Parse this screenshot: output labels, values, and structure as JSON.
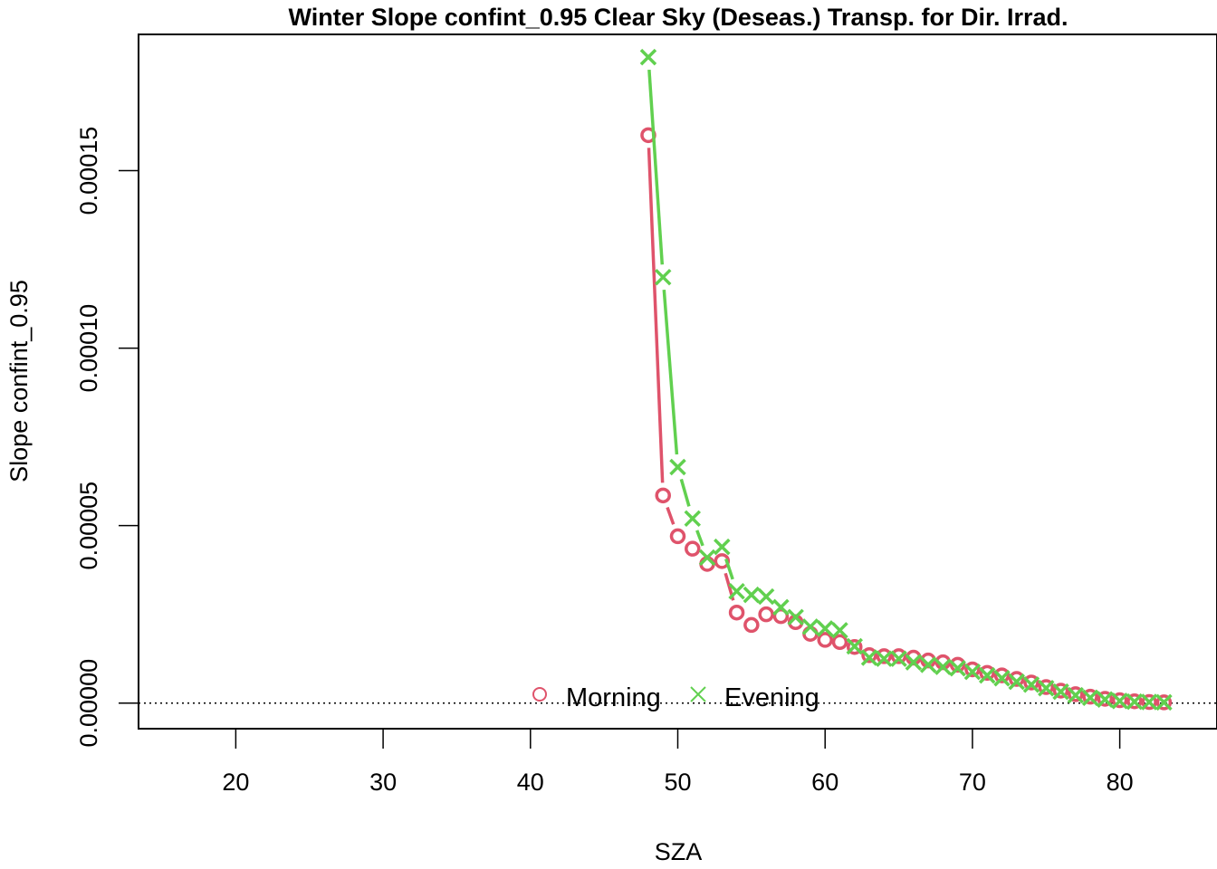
{
  "chart_data": {
    "type": "line",
    "title": "Winter Slope confint_0.95 Clear Sky (Deseas.) Transp. for Dir. Irrad.",
    "xlabel": "SZA",
    "ylabel": "Slope confint_0.95",
    "xlim": [
      13.4,
      86.6
    ],
    "ylim": [
      -7.22e-06,
      0.0001884
    ],
    "xticks": [
      20,
      30,
      40,
      50,
      60,
      70,
      80
    ],
    "xtick_labels": [
      "20",
      "30",
      "40",
      "50",
      "60",
      "70",
      "80"
    ],
    "yticks": [
      0,
      5e-05,
      0.0001,
      0.00015
    ],
    "ytick_labels": [
      "0.00000",
      "0.00005",
      "0.00010",
      "0.00015"
    ],
    "reference_line": {
      "y": 0,
      "style": "dotted"
    },
    "grid": false,
    "legend_position": "bottom-center",
    "series": [
      {
        "name": "Morning",
        "color": "#DF536B",
        "marker": "circle",
        "x": [
          48,
          49,
          50,
          51,
          52,
          53,
          54,
          55,
          56,
          57,
          58,
          59,
          60,
          61,
          62,
          63,
          64,
          65,
          66,
          67,
          68,
          69,
          70,
          71,
          72,
          73,
          74,
          75,
          76,
          77,
          78,
          79,
          80,
          81,
          82,
          83
        ],
        "y": [
          0.00016,
          5.85e-05,
          4.7e-05,
          4.35e-05,
          3.92e-05,
          4e-05,
          2.55e-05,
          2.2e-05,
          2.5e-05,
          2.45e-05,
          2.28e-05,
          1.95e-05,
          1.78e-05,
          1.72e-05,
          1.58e-05,
          1.35e-05,
          1.32e-05,
          1.32e-05,
          1.28e-05,
          1.2e-05,
          1.15e-05,
          1.08e-05,
          9.5e-06,
          8.5e-06,
          7.8e-06,
          6.8e-06,
          5.8e-06,
          4.5e-06,
          3.5e-06,
          2.5e-06,
          1.8e-06,
          1.2e-06,
          8e-07,
          5e-07,
          3e-07,
          2e-07
        ]
      },
      {
        "name": "Evening",
        "color": "#61D04F",
        "marker": "x",
        "x": [
          48,
          49,
          50,
          51,
          52,
          53,
          54,
          55,
          56,
          57,
          58,
          59,
          60,
          61,
          62,
          63,
          64,
          65,
          66,
          67,
          68,
          69,
          70,
          71,
          72,
          73,
          74,
          75,
          76,
          77,
          78,
          79,
          80,
          81,
          82,
          83
        ],
        "y": [
          0.000182,
          0.00012,
          6.65e-05,
          5.2e-05,
          4.1e-05,
          4.4e-05,
          3.15e-05,
          3.05e-05,
          3e-05,
          2.7e-05,
          2.42e-05,
          2.15e-05,
          2.1e-05,
          2.05e-05,
          1.6e-05,
          1.28e-05,
          1.25e-05,
          1.25e-05,
          1.15e-05,
          1.08e-05,
          1.02e-05,
          9.8e-06,
          8.8e-06,
          7.8e-06,
          7e-06,
          6e-06,
          5.2e-06,
          4.2e-06,
          3.2e-06,
          2.2e-06,
          1.5e-06,
          1e-06,
          6e-07,
          4e-07,
          3e-07,
          2e-07
        ]
      }
    ]
  }
}
